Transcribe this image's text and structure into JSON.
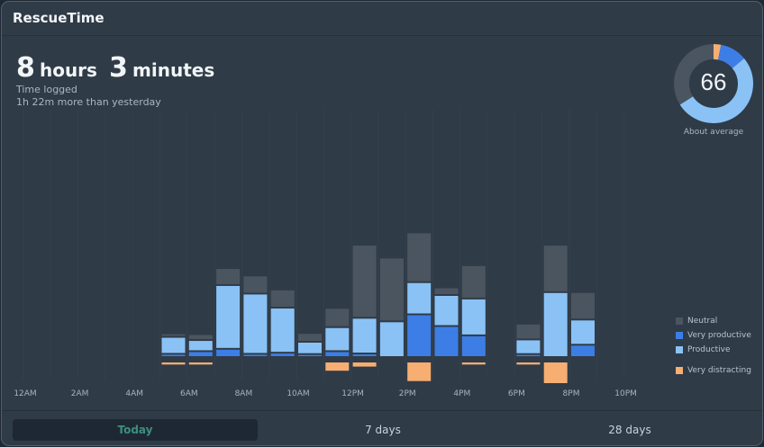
{
  "app": {
    "title": "RescueTime"
  },
  "summary": {
    "hours_value": "8",
    "hours_unit": "hours",
    "minutes_value": "3",
    "minutes_unit": "minutes",
    "caption": "Time logged",
    "comparison": "1h 22m more than yesterday"
  },
  "score": {
    "value": "66",
    "label": "About average",
    "segments": {
      "distracting": 0.03,
      "very_productive": 0.11,
      "productive": 0.52,
      "neutral": 0.34
    }
  },
  "colors": {
    "neutral": "#4b5560",
    "very_productive": "#3d7ee6",
    "productive": "#8ac2f6",
    "very_distracting": "#f7ae72"
  },
  "legend": [
    {
      "key": "neutral",
      "label": "Neutral"
    },
    {
      "key": "very_productive",
      "label": "Very productive"
    },
    {
      "key": "productive",
      "label": "Productive"
    },
    {
      "key": "very_distracting",
      "label": "Very distracting"
    }
  ],
  "x_labels": [
    "12AM",
    "2AM",
    "4AM",
    "6AM",
    "8AM",
    "10AM",
    "12PM",
    "2PM",
    "4PM",
    "6PM",
    "8PM",
    "10PM"
  ],
  "chart_data": {
    "type": "bar",
    "stacked": true,
    "x_unit": "hour of day",
    "y_unit": "minutes",
    "categories": [
      "12AM",
      "1AM",
      "2AM",
      "3AM",
      "4AM",
      "5AM",
      "6AM",
      "7AM",
      "8AM",
      "9AM",
      "10AM",
      "11AM",
      "12PM",
      "1PM",
      "2PM",
      "3PM",
      "4PM",
      "5PM",
      "6PM",
      "7PM",
      "8PM",
      "9PM",
      "10PM",
      "11PM"
    ],
    "series": [
      {
        "name": "Very productive",
        "key": "very_productive",
        "values": [
          0,
          0,
          0,
          0,
          0,
          1.2,
          3.5,
          5.5,
          1.2,
          2.2,
          1,
          3.5,
          1.5,
          0,
          35,
          25,
          17,
          0,
          1,
          0,
          9,
          0,
          0,
          0
        ]
      },
      {
        "name": "Productive",
        "key": "productive",
        "values": [
          0,
          0,
          0,
          0,
          0,
          13,
          8,
          53,
          50,
          37,
          9,
          19,
          29,
          29,
          26,
          25,
          30,
          0,
          11,
          54,
          20,
          0,
          0,
          0
        ]
      },
      {
        "name": "Neutral",
        "key": "neutral",
        "values": [
          0,
          0,
          0,
          0,
          0,
          1.5,
          3.5,
          13,
          14,
          14,
          6,
          15,
          61,
          53,
          41,
          5,
          27,
          0,
          12,
          39,
          22,
          0,
          0,
          0
        ]
      },
      {
        "name": "Very distracting",
        "key": "very_distracting",
        "values": [
          0,
          0,
          0,
          0,
          0,
          1,
          1,
          0,
          0,
          0,
          0,
          4,
          2,
          0,
          9,
          0,
          1,
          0,
          1,
          10,
          0,
          0,
          0,
          0
        ]
      }
    ]
  },
  "tabs": [
    {
      "label": "Today",
      "active": true
    },
    {
      "label": "7 days",
      "active": false
    },
    {
      "label": "28 days",
      "active": false
    }
  ]
}
